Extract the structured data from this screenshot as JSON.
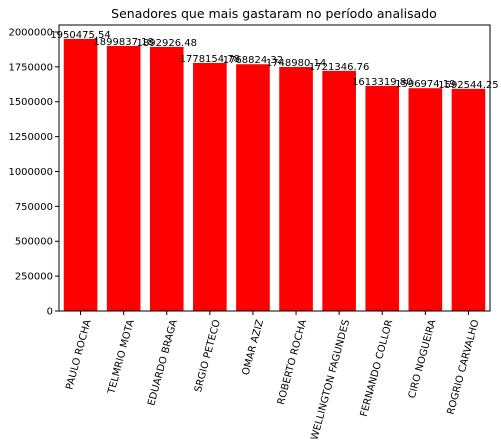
{
  "chart_data": {
    "type": "bar",
    "title": "Senadores que mais gastaram no período analisado",
    "xlabel": "",
    "ylabel": "",
    "categories": [
      "PAULO ROCHA",
      "TELMRIO MOTA",
      "EDUARDO BRAGA",
      "SRGIO PETECO",
      "OMAR AZIZ",
      "ROBERTO ROCHA",
      "WELLINGTON FAGUNDES",
      "FERNANDO COLLOR",
      "CIRO NOGUEIRA",
      "ROGRIO CARVALHO"
    ],
    "values": [
      1950475.54,
      1899837.18,
      1892926.48,
      1778154.78,
      1768824.32,
      1748980.14,
      1721346.76,
      1613319.8,
      1596974.19,
      1592544.25
    ],
    "data_labels": [
      "1950475.54",
      "1899837.18",
      "1892926.48",
      "1778154.78",
      "1768824.32",
      "1748980.14",
      "1721346.76",
      "1613319.80",
      "1596974.19",
      "1592544.25"
    ],
    "ylim": [
      0,
      2050000
    ],
    "yticks": [
      0,
      250000,
      500000,
      750000,
      1000000,
      1250000,
      1500000,
      1750000,
      2000000
    ],
    "ytick_labels": [
      "0",
      "250000",
      "500000",
      "750000",
      "1000000",
      "1250000",
      "1500000",
      "1750000",
      "2000000"
    ],
    "bar_color": "#ff0000",
    "grid": false,
    "legend": "none"
  }
}
